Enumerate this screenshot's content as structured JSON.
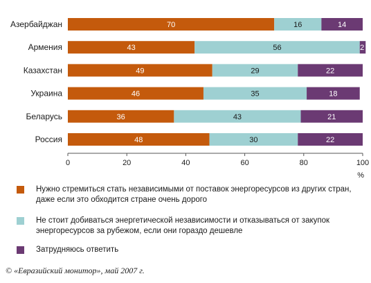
{
  "chart_data": {
    "type": "bar",
    "orientation": "horizontal",
    "stacked": true,
    "categories": [
      "Азербайджан",
      "Армения",
      "Казахстан",
      "Украина",
      "Беларусь",
      "Россия"
    ],
    "series": [
      {
        "name": "Нужно стремиться стать независимыми от поставок энергоресурсов из других стран, даже если это обходится стране очень дорого",
        "color": "#c45a0c",
        "values": [
          70,
          43,
          49,
          46,
          36,
          48
        ]
      },
      {
        "name": "Не стоит добиваться энергетической независимости и отказываться от закупок энергоресурсов за рубежом, если они гораздо дешевле",
        "color": "#9ed0d2",
        "values": [
          16,
          56,
          29,
          35,
          43,
          30
        ]
      },
      {
        "name": "Затрудняюсь ответить",
        "color": "#6b3a73",
        "values": [
          14,
          2,
          22,
          18,
          21,
          22
        ]
      }
    ],
    "xlim": [
      0,
      100
    ],
    "xticks": [
      0,
      20,
      40,
      60,
      80,
      100
    ],
    "x_unit": "%",
    "grid": false,
    "legend_position": "bottom"
  },
  "source": "© «Евразийский монитор», май 2007 г."
}
